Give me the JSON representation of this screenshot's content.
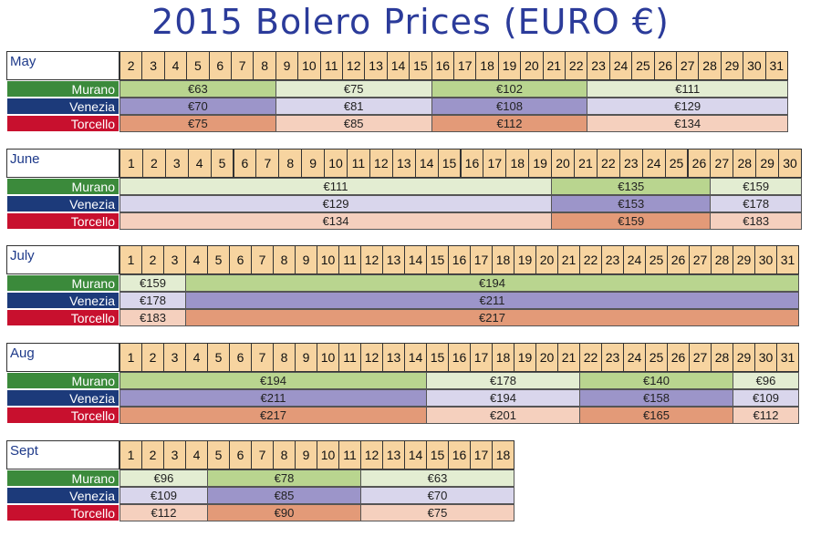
{
  "title": "2015 Bolero Prices (EURO €)",
  "colors": {
    "title": "#2b3b9a",
    "day_header": "#f7d4a0",
    "label_murano": "#3b8a3b",
    "label_venezia": "#1c3a7a",
    "label_torcello": "#c8102e",
    "murano_dark": "#b9d58f",
    "murano_light": "#e3edd2",
    "venezia_dark": "#9c95c9",
    "venezia_light": "#d9d6ec",
    "torcello_dark": "#e39a78",
    "torcello_light": "#f5d0be"
  },
  "rows": [
    "Murano",
    "Venezia",
    "Torcello"
  ],
  "months": [
    {
      "name": "May",
      "first_day": 2,
      "last_day": 31,
      "segments": [
        {
          "from": 2,
          "to": 8,
          "shade": "dark",
          "prices": [
            "€63",
            "€70",
            "€75"
          ]
        },
        {
          "from": 9,
          "to": 15,
          "shade": "light",
          "prices": [
            "€75",
            "€81",
            "€85"
          ]
        },
        {
          "from": 16,
          "to": 22,
          "shade": "dark",
          "prices": [
            "€102",
            "€108",
            "€112"
          ]
        },
        {
          "from": 23,
          "to": 31,
          "shade": "light",
          "prices": [
            "€111",
            "€129",
            "€134"
          ]
        }
      ]
    },
    {
      "name": "June",
      "first_day": 1,
      "last_day": 30,
      "segments": [
        {
          "from": 1,
          "to": 19,
          "shade": "light",
          "prices": [
            "€111",
            "€129",
            "€134"
          ]
        },
        {
          "from": 20,
          "to": 26,
          "shade": "dark",
          "prices": [
            "€135",
            "€153",
            "€159"
          ]
        },
        {
          "from": 27,
          "to": 30,
          "shade": "light",
          "prices": [
            "€159",
            "€178",
            "€183"
          ]
        }
      ]
    },
    {
      "name": "July",
      "first_day": 1,
      "last_day": 31,
      "segments": [
        {
          "from": 1,
          "to": 3,
          "shade": "light",
          "prices": [
            "€159",
            "€178",
            "€183"
          ]
        },
        {
          "from": 4,
          "to": 31,
          "shade": "dark",
          "prices": [
            "€194",
            "€211",
            "€217"
          ]
        }
      ]
    },
    {
      "name": "Aug",
      "first_day": 1,
      "last_day": 31,
      "segments": [
        {
          "from": 1,
          "to": 14,
          "shade": "dark",
          "prices": [
            "€194",
            "€211",
            "€217"
          ]
        },
        {
          "from": 15,
          "to": 21,
          "shade": "light",
          "prices": [
            "€178",
            "€194",
            "€201"
          ]
        },
        {
          "from": 22,
          "to": 28,
          "shade": "dark",
          "prices": [
            "€140",
            "€158",
            "€165"
          ]
        },
        {
          "from": 29,
          "to": 31,
          "shade": "light",
          "prices": [
            "€96",
            "€109",
            "€112"
          ]
        }
      ]
    },
    {
      "name": "Sept",
      "first_day": 1,
      "last_day": 18,
      "segments": [
        {
          "from": 1,
          "to": 4,
          "shade": "light",
          "prices": [
            "€96",
            "€109",
            "€112"
          ]
        },
        {
          "from": 5,
          "to": 11,
          "shade": "dark",
          "prices": [
            "€78",
            "€85",
            "€90"
          ]
        },
        {
          "from": 12,
          "to": 18,
          "shade": "light",
          "prices": [
            "€63",
            "€70",
            "€75"
          ]
        }
      ]
    }
  ]
}
